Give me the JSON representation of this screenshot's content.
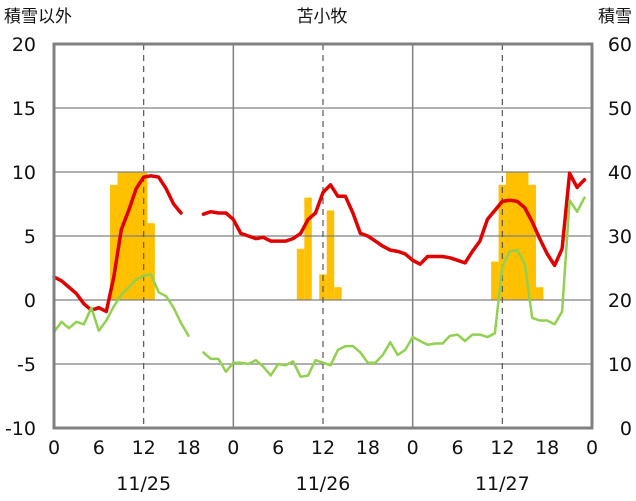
{
  "chart_data": {
    "type": "bar",
    "title": "苫小牧",
    "left_axis_label": "積雪以外",
    "right_axis_label": "積雪",
    "left_ylim": [
      -10,
      20
    ],
    "left_yticks": [
      "20",
      "15",
      "10",
      "5",
      "0",
      "-5",
      "-10"
    ],
    "right_ylim": [
      0,
      60
    ],
    "right_yticks": [
      "60",
      "50",
      "40",
      "30",
      "20",
      "10",
      "0"
    ],
    "x_hour_ticks": [
      "0",
      "6",
      "12",
      "18",
      "0",
      "6",
      "12",
      "18",
      "0",
      "6",
      "12",
      "18",
      "0"
    ],
    "date_labels": [
      "11/25",
      "11/26",
      "11/27"
    ],
    "grid": true,
    "colors": {
      "bars": "#FFC000",
      "red_series": "#E00000",
      "green_series": "#92D050",
      "purple_series": "#7030A0",
      "frame": "#808080"
    },
    "bars": [
      {
        "hour": 8,
        "value": 9
      },
      {
        "hour": 9,
        "value": 10
      },
      {
        "hour": 10,
        "value": 10
      },
      {
        "hour": 11,
        "value": 10
      },
      {
        "hour": 12,
        "value": 10
      },
      {
        "hour": 13,
        "value": 6
      },
      {
        "hour": 33,
        "value": 4
      },
      {
        "hour": 34,
        "value": 8
      },
      {
        "hour": 36,
        "value": 2
      },
      {
        "hour": 37,
        "value": 7
      },
      {
        "hour": 38,
        "value": 1
      },
      {
        "hour": 59,
        "value": 3
      },
      {
        "hour": 60,
        "value": 9
      },
      {
        "hour": 61,
        "value": 10
      },
      {
        "hour": 62,
        "value": 10
      },
      {
        "hour": 63,
        "value": 10
      },
      {
        "hour": 64,
        "value": 9
      },
      {
        "hour": 65,
        "value": 1
      }
    ],
    "series": [
      {
        "values": [
          [
            0,
            1.8
          ],
          [
            1,
            1.5
          ],
          [
            2,
            1.0
          ],
          [
            3,
            0.5
          ],
          [
            4,
            -0.3
          ],
          [
            5,
            -0.8
          ],
          [
            6,
            -0.6
          ],
          [
            7,
            -0.9
          ],
          [
            8,
            1.8
          ],
          [
            9,
            5.5
          ],
          [
            10,
            7.0
          ],
          [
            11,
            8.7
          ],
          [
            12,
            9.6
          ],
          [
            13,
            9.7
          ],
          [
            14,
            9.6
          ],
          [
            15,
            8.7
          ],
          [
            16,
            7.5
          ],
          [
            17,
            6.8
          ],
          null,
          [
            20,
            6.7
          ],
          [
            21,
            6.9
          ],
          [
            22,
            6.8
          ],
          [
            23,
            6.8
          ],
          [
            24,
            6.3
          ],
          [
            25,
            5.2
          ],
          [
            26,
            5.0
          ],
          [
            27,
            4.8
          ],
          [
            28,
            4.9
          ],
          [
            29,
            4.6
          ],
          [
            30,
            4.6
          ],
          [
            31,
            4.6
          ],
          [
            32,
            4.8
          ],
          [
            33,
            5.2
          ],
          [
            34,
            6.3
          ],
          [
            35,
            6.8
          ],
          [
            36,
            8.4
          ],
          [
            37,
            9.0
          ],
          [
            38,
            8.1
          ],
          [
            39,
            8.1
          ],
          [
            40,
            6.8
          ],
          [
            41,
            5.2
          ],
          [
            42,
            5.0
          ],
          [
            43,
            4.6
          ],
          [
            44,
            4.2
          ],
          [
            45,
            3.9
          ],
          [
            46,
            3.8
          ],
          [
            47,
            3.6
          ],
          [
            48,
            3.1
          ],
          [
            49,
            2.8
          ],
          [
            50,
            3.4
          ],
          [
            51,
            3.4
          ],
          [
            52,
            3.4
          ],
          [
            53,
            3.3
          ],
          [
            54,
            3.1
          ],
          [
            55,
            2.9
          ],
          [
            56,
            3.8
          ],
          [
            57,
            4.6
          ],
          [
            58,
            6.3
          ],
          [
            59,
            7.0
          ],
          [
            60,
            7.7
          ],
          [
            61,
            7.8
          ],
          [
            62,
            7.7
          ],
          [
            63,
            7.2
          ],
          [
            64,
            6.1
          ],
          [
            65,
            4.8
          ],
          [
            66,
            3.6
          ],
          [
            67,
            2.7
          ],
          [
            68,
            4.0
          ],
          [
            69,
            9.9
          ],
          [
            70,
            8.8
          ],
          [
            71,
            9.4
          ]
        ]
      },
      {
        "values": [
          [
            0,
            -2.5
          ],
          [
            1,
            -1.7
          ],
          [
            2,
            -2.2
          ],
          [
            3,
            -1.7
          ],
          [
            4,
            -1.9
          ],
          [
            5,
            -0.6
          ],
          [
            6,
            -2.4
          ],
          [
            7,
            -1.6
          ],
          [
            8,
            -0.5
          ],
          [
            9,
            0.4
          ],
          [
            10,
            1.0
          ],
          [
            11,
            1.6
          ],
          [
            12,
            1.9
          ],
          [
            13,
            2.0
          ],
          [
            14,
            0.6
          ],
          [
            15,
            0.3
          ],
          [
            16,
            -0.6
          ],
          [
            17,
            -1.8
          ],
          [
            18,
            -2.8
          ],
          null,
          [
            20,
            -4.1
          ],
          [
            21,
            -4.6
          ],
          [
            22,
            -4.6
          ],
          [
            23,
            -5.6
          ],
          [
            24,
            -4.9
          ],
          [
            25,
            -4.9
          ],
          [
            26,
            -5.0
          ],
          [
            27,
            -4.7
          ],
          [
            28,
            -5.2
          ],
          [
            29,
            -5.9
          ],
          [
            30,
            -5.0
          ],
          [
            31,
            -5.1
          ],
          [
            32,
            -4.8
          ],
          [
            33,
            -6.0
          ],
          [
            34,
            -5.9
          ],
          [
            35,
            -4.7
          ],
          [
            36,
            -4.9
          ],
          [
            37,
            -5.1
          ],
          [
            38,
            -3.9
          ],
          [
            39,
            -3.6
          ],
          [
            40,
            -3.6
          ],
          [
            41,
            -4.1
          ],
          [
            42,
            -4.9
          ],
          [
            43,
            -4.9
          ],
          [
            44,
            -4.3
          ],
          [
            45,
            -3.3
          ],
          [
            46,
            -4.3
          ],
          [
            47,
            -3.9
          ],
          [
            48,
            -2.9
          ],
          [
            49,
            -3.2
          ],
          [
            50,
            -3.5
          ],
          [
            51,
            -3.4
          ],
          [
            52,
            -3.4
          ],
          [
            53,
            -2.8
          ],
          [
            54,
            -2.7
          ],
          [
            55,
            -3.2
          ],
          [
            56,
            -2.7
          ],
          [
            57,
            -2.7
          ],
          [
            58,
            -2.9
          ],
          [
            59,
            -2.6
          ],
          [
            60,
            2.6
          ],
          [
            61,
            3.8
          ],
          [
            62,
            3.9
          ],
          [
            63,
            2.8
          ],
          [
            64,
            -1.4
          ],
          [
            65,
            -1.6
          ],
          [
            66,
            -1.6
          ],
          [
            67,
            -1.9
          ],
          [
            68,
            -0.9
          ],
          [
            69,
            7.8
          ],
          [
            70,
            6.9
          ],
          [
            71,
            8.0
          ]
        ]
      },
      {
        "values": [
          [
            0,
            -10
          ],
          [
            72,
            -10
          ]
        ]
      }
    ]
  }
}
